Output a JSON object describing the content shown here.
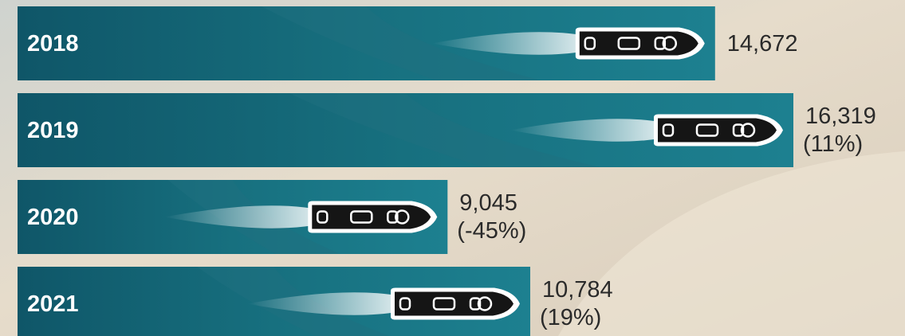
{
  "chart_data": {
    "type": "bar",
    "orientation": "horizontal",
    "categories": [
      "2018",
      "2019",
      "2020",
      "2021"
    ],
    "values": [
      14672,
      16319,
      9045,
      10784
    ],
    "value_labels": [
      "14,672",
      "16,319",
      "9,045",
      "10,784"
    ],
    "change_labels": [
      null,
      "(11%)",
      "(-45%)",
      "(19%)"
    ],
    "color": "#1f6f80"
  }
}
